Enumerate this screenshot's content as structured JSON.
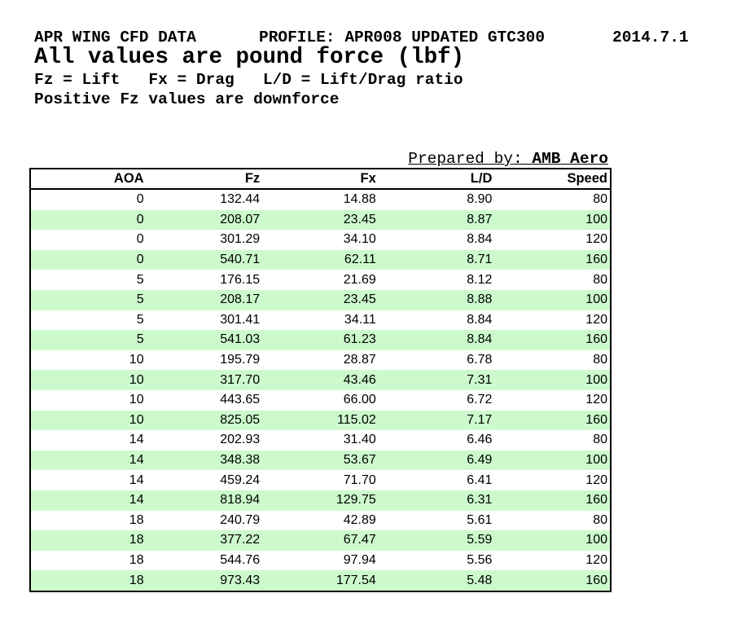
{
  "header": {
    "title": "APR WING CFD DATA",
    "profile": "PROFILE: APR008 UPDATED GTC300",
    "date": "2014.7.1",
    "subtitle": "All values are pound force (lbf)",
    "legend": "Fz = Lift   Fx = Drag   L/D = Lift/Drag ratio",
    "note": "Positive Fz values are downforce"
  },
  "prepared_by": {
    "label": "Prepared by: ",
    "value": "AMB Aero"
  },
  "table": {
    "columns": [
      "AOA",
      "Fz",
      "Fx",
      "L/D",
      "Speed"
    ],
    "rows": [
      [
        "0",
        "132.44",
        "14.88",
        "8.90",
        "80"
      ],
      [
        "0",
        "208.07",
        "23.45",
        "8.87",
        "100"
      ],
      [
        "0",
        "301.29",
        "34.10",
        "8.84",
        "120"
      ],
      [
        "0",
        "540.71",
        "62.11",
        "8.71",
        "160"
      ],
      [
        "5",
        "176.15",
        "21.69",
        "8.12",
        "80"
      ],
      [
        "5",
        "208.17",
        "23.45",
        "8.88",
        "100"
      ],
      [
        "5",
        "301.41",
        "34.11",
        "8.84",
        "120"
      ],
      [
        "5",
        "541.03",
        "61.23",
        "8.84",
        "160"
      ],
      [
        "10",
        "195.79",
        "28.87",
        "6.78",
        "80"
      ],
      [
        "10",
        "317.70",
        "43.46",
        "7.31",
        "100"
      ],
      [
        "10",
        "443.65",
        "66.00",
        "6.72",
        "120"
      ],
      [
        "10",
        "825.05",
        "115.02",
        "7.17",
        "160"
      ],
      [
        "14",
        "202.93",
        "31.40",
        "6.46",
        "80"
      ],
      [
        "14",
        "348.38",
        "53.67",
        "6.49",
        "100"
      ],
      [
        "14",
        "459.24",
        "71.70",
        "6.41",
        "120"
      ],
      [
        "14",
        "818.94",
        "129.75",
        "6.31",
        "160"
      ],
      [
        "18",
        "240.79",
        "42.89",
        "5.61",
        "80"
      ],
      [
        "18",
        "377.22",
        "67.47",
        "5.59",
        "100"
      ],
      [
        "18",
        "544.76",
        "97.94",
        "5.56",
        "120"
      ],
      [
        "18",
        "973.43",
        "177.54",
        "5.48",
        "160"
      ]
    ]
  },
  "colors": {
    "stripe_green": "#ccfacc",
    "border_black": "#000000"
  }
}
